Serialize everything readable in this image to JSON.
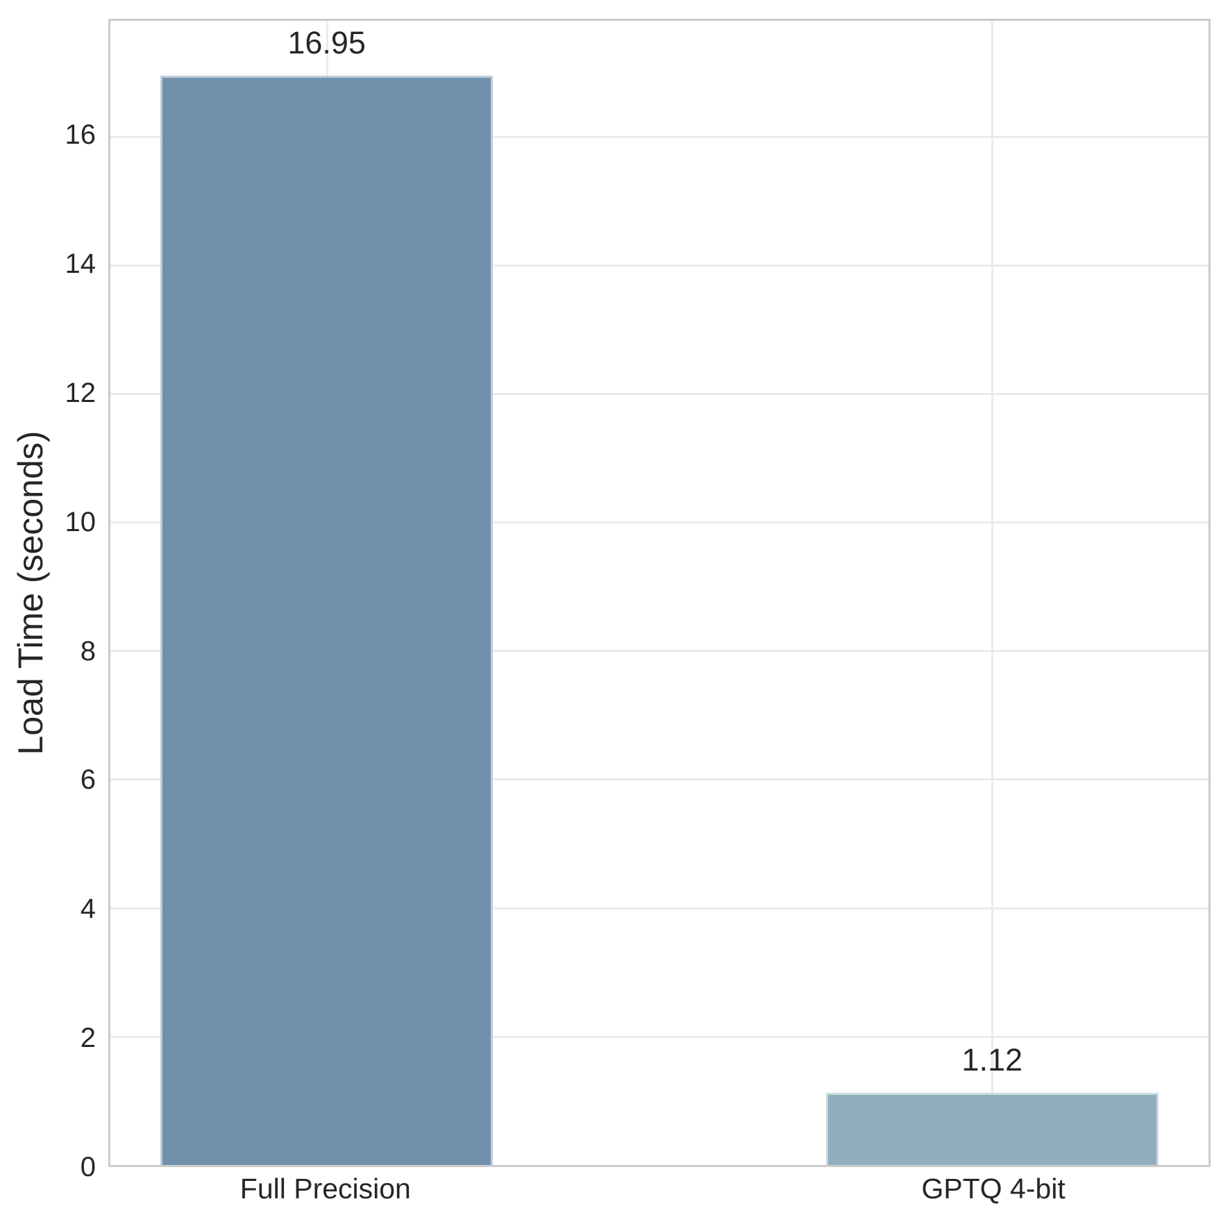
{
  "chart_data": {
    "type": "bar",
    "categories": [
      "Full Precision",
      "GPTQ 4-bit"
    ],
    "values": [
      16.95,
      1.12
    ],
    "value_labels": [
      "16.95",
      "1.12"
    ],
    "title": "",
    "xlabel": "",
    "ylabel": "Load Time (seconds)",
    "ylim": [
      0,
      17.8
    ],
    "yticks": [
      0,
      2,
      4,
      6,
      8,
      10,
      12,
      14,
      16
    ],
    "ytick_labels": [
      "0",
      "2",
      "4",
      "6",
      "8",
      "10",
      "12",
      "14",
      "16"
    ],
    "grid": true,
    "legend": "none",
    "bar_colors": [
      "#7190ac",
      "#90aebc"
    ],
    "grid_color": "#ebebeb",
    "spine_color": "#cbcbcb",
    "text_color": "#262626",
    "background_color": "#ffffff"
  }
}
